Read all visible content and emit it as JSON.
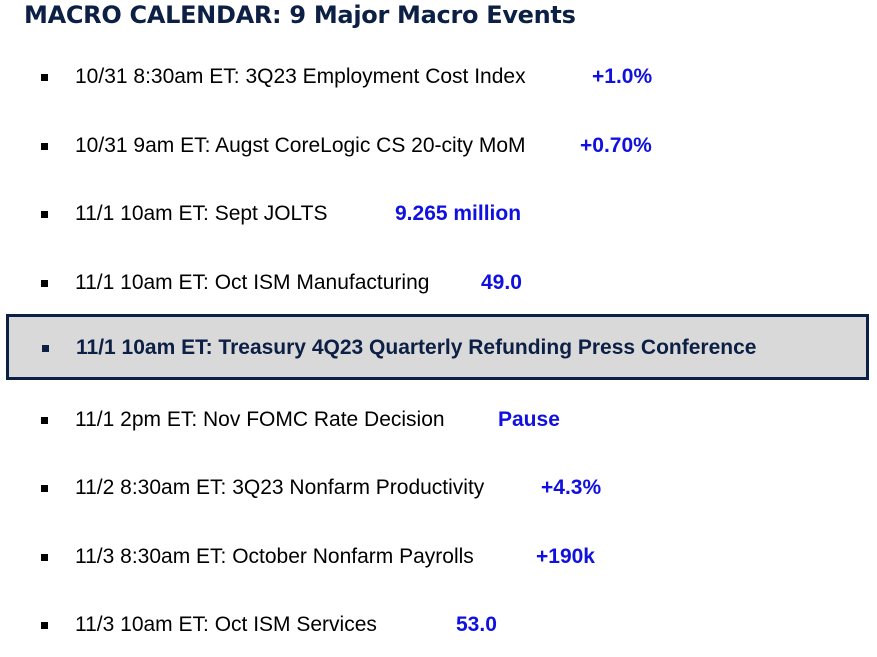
{
  "title": "MACRO CALENDAR: 9 Major Macro Events",
  "colors": {
    "title": "#0c1f44",
    "value": "#1010e0",
    "highlight_border": "#0c1f44",
    "highlight_fill": "#d9d9d9"
  },
  "events": [
    {
      "text": "10/31 8:30am ET: 3Q23 Employment Cost Index",
      "value": "+1.0%"
    },
    {
      "text": "10/31 9am ET: Augst CoreLogic CS 20-city MoM",
      "value": "+0.70%"
    },
    {
      "text": "11/1 10am ET: Sept JOLTS",
      "value": "9.265 million"
    },
    {
      "text": "11/1 10am ET: Oct ISM Manufacturing",
      "value": "49.0"
    },
    {
      "text": "11/1 10am ET: Treasury 4Q23 Quarterly Refunding Press Conference",
      "value": "",
      "highlighted": true
    },
    {
      "text": "11/1 2pm ET: Nov FOMC Rate Decision",
      "value": "Pause"
    },
    {
      "text": "11/2 8:30am ET: 3Q23 Nonfarm Productivity",
      "value": "+4.3%"
    },
    {
      "text": "11/3 8:30am ET: October Nonfarm Payrolls",
      "value": "+190k"
    },
    {
      "text": "11/3 10am ET: Oct ISM Services",
      "value": "53.0"
    }
  ]
}
